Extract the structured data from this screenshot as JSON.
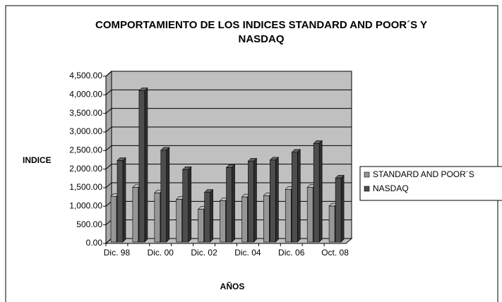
{
  "chart_data": {
    "type": "bar3d",
    "title": "COMPORTAMIENTO DE LOS INDICES STANDARD AND POOR´S Y NASDAQ",
    "x_label": "AÑOS",
    "y_label": "INDICE",
    "categories": [
      "Dic. 98",
      null,
      "Dic. 00",
      null,
      "Dic. 02",
      null,
      "Dic. 04",
      null,
      "Dic. 06",
      null,
      "Oct. 08"
    ],
    "series": [
      {
        "name": "STANDARD AND POOR´S",
        "color": "#969696",
        "values": [
          1229,
          1469,
          1320,
          1148,
          880,
          1112,
          1212,
          1248,
          1418,
          1468,
          968
        ]
      },
      {
        "name": "NASDAQ",
        "color": "#4d4d4d",
        "values": [
          2193,
          4069,
          2470,
          1950,
          1335,
          2003,
          2175,
          2205,
          2415,
          2652,
          1720
        ]
      }
    ],
    "ylim": [
      0,
      4500
    ],
    "yticks": [
      {
        "value": 0,
        "label": "0.00"
      },
      {
        "value": 500,
        "label": "500.00"
      },
      {
        "value": 1000,
        "label": "1,000.00"
      },
      {
        "value": 1500,
        "label": "1,500.00"
      },
      {
        "value": 2000,
        "label": "2,000.00"
      },
      {
        "value": 2500,
        "label": "2,500.00"
      },
      {
        "value": 3000,
        "label": "3,000.00"
      },
      {
        "value": 3500,
        "label": "3,500.00"
      },
      {
        "value": 4000,
        "label": "4,000.00"
      },
      {
        "value": 4500,
        "label": "4,500.00"
      }
    ],
    "grid": true,
    "legend": "right"
  }
}
